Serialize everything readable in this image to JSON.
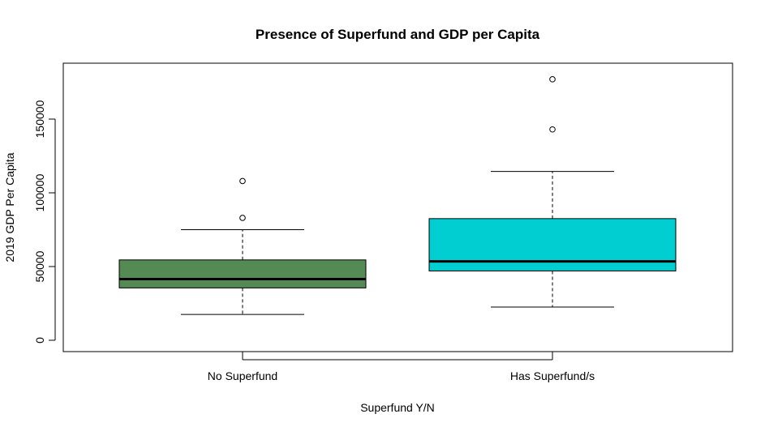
{
  "chart_data": {
    "type": "boxplot",
    "title": "Presence of Superfund and GDP per Capita",
    "xlabel": "Superfund Y/N",
    "ylabel": "2019 GDP Per Capita",
    "ylim": [
      0,
      180000
    ],
    "yticks": [
      0,
      50000,
      100000,
      150000
    ],
    "ytick_labels": [
      "0",
      "50000",
      "100000",
      "150000"
    ],
    "categories": [
      "No Superfund",
      "Has Superfund/s"
    ],
    "boxes": [
      {
        "category": "No Superfund",
        "color": "#548B54",
        "whisker_low": 17500,
        "q1": 35500,
        "median": 41500,
        "q3": 54500,
        "whisker_high": 75000,
        "outliers": [
          83000,
          108000
        ]
      },
      {
        "category": "Has Superfund/s",
        "color": "#00CED1",
        "whisker_low": 22500,
        "q1": 47000,
        "median": 53500,
        "q3": 82500,
        "whisker_high": 114500,
        "outliers": [
          143000,
          177000
        ]
      }
    ]
  }
}
